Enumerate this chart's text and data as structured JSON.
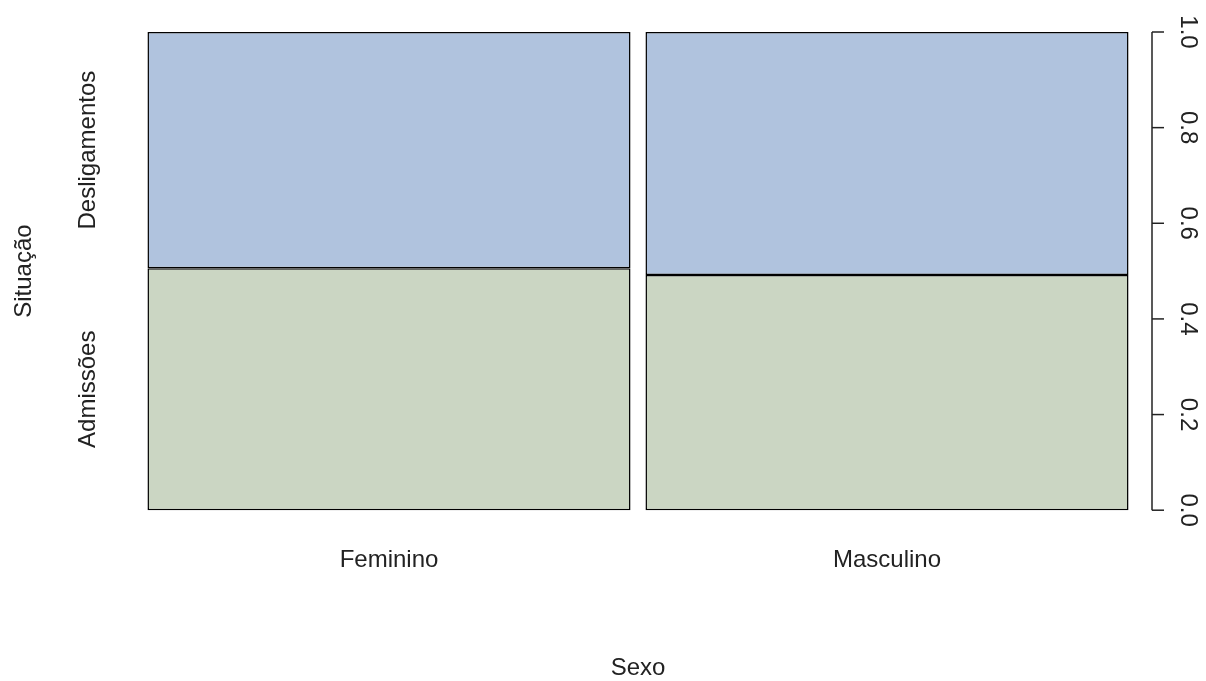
{
  "chart_data": {
    "type": "bar",
    "stacked": true,
    "xlabel": "Sexo",
    "ylabel": "Situação",
    "categories": [
      "Feminino",
      "Masculino"
    ],
    "series": [
      {
        "name": "Admissões",
        "color": "#cbd6c3",
        "values": [
          0.506,
          0.492
        ]
      },
      {
        "name": "Desligamentos",
        "color": "#b0c3de",
        "values": [
          0.494,
          0.508
        ]
      }
    ],
    "ylim": [
      0,
      1
    ],
    "yticks": [
      {
        "value": 0,
        "label": "0.0"
      },
      {
        "value": 0.2,
        "label": "0.2"
      },
      {
        "value": 0.4,
        "label": "0.4"
      },
      {
        "value": 0.6,
        "label": "0.6"
      },
      {
        "value": 0.8,
        "label": "0.8"
      },
      {
        "value": 1,
        "label": "1.0"
      }
    ],
    "grid": false,
    "legend": false
  }
}
